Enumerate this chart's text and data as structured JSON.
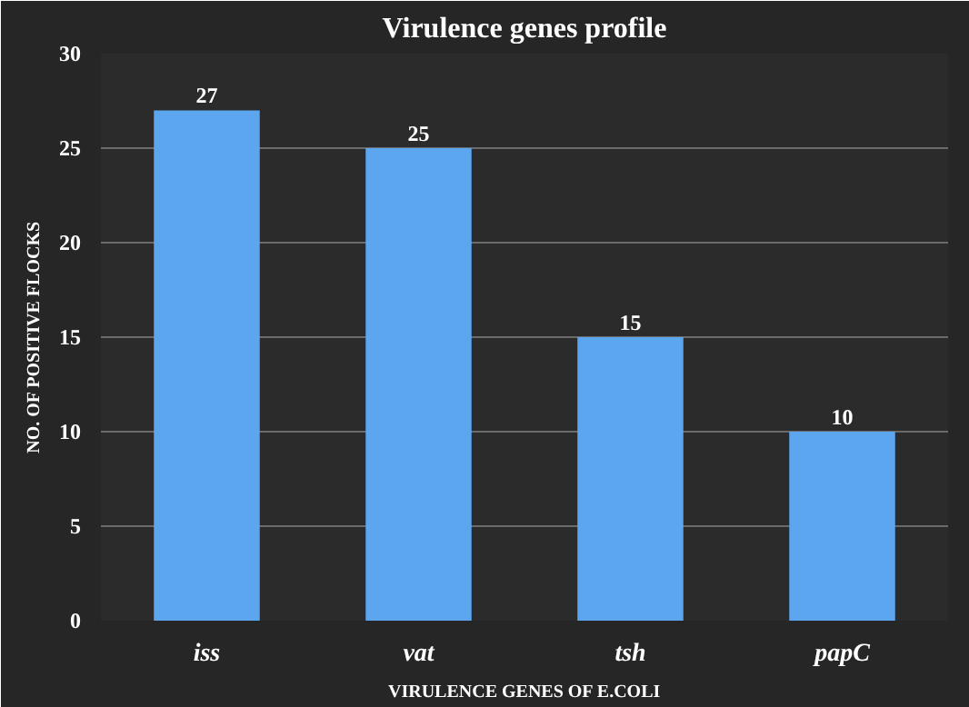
{
  "chart_data": {
    "type": "bar",
    "title": "Virulence genes profile",
    "xlabel": "VIRULENCE GENES OF E.COLI",
    "ylabel": "NO. OF POSITIVE FLOCKS",
    "categories": [
      "iss",
      "vat",
      "tsh",
      "papC"
    ],
    "values": [
      27,
      25,
      15,
      10
    ],
    "color": "#5ba6ee",
    "ylim": [
      0,
      30
    ],
    "yticks": [
      0,
      5,
      10,
      15,
      20,
      25,
      30
    ],
    "grid": "y",
    "data_labels": true
  }
}
